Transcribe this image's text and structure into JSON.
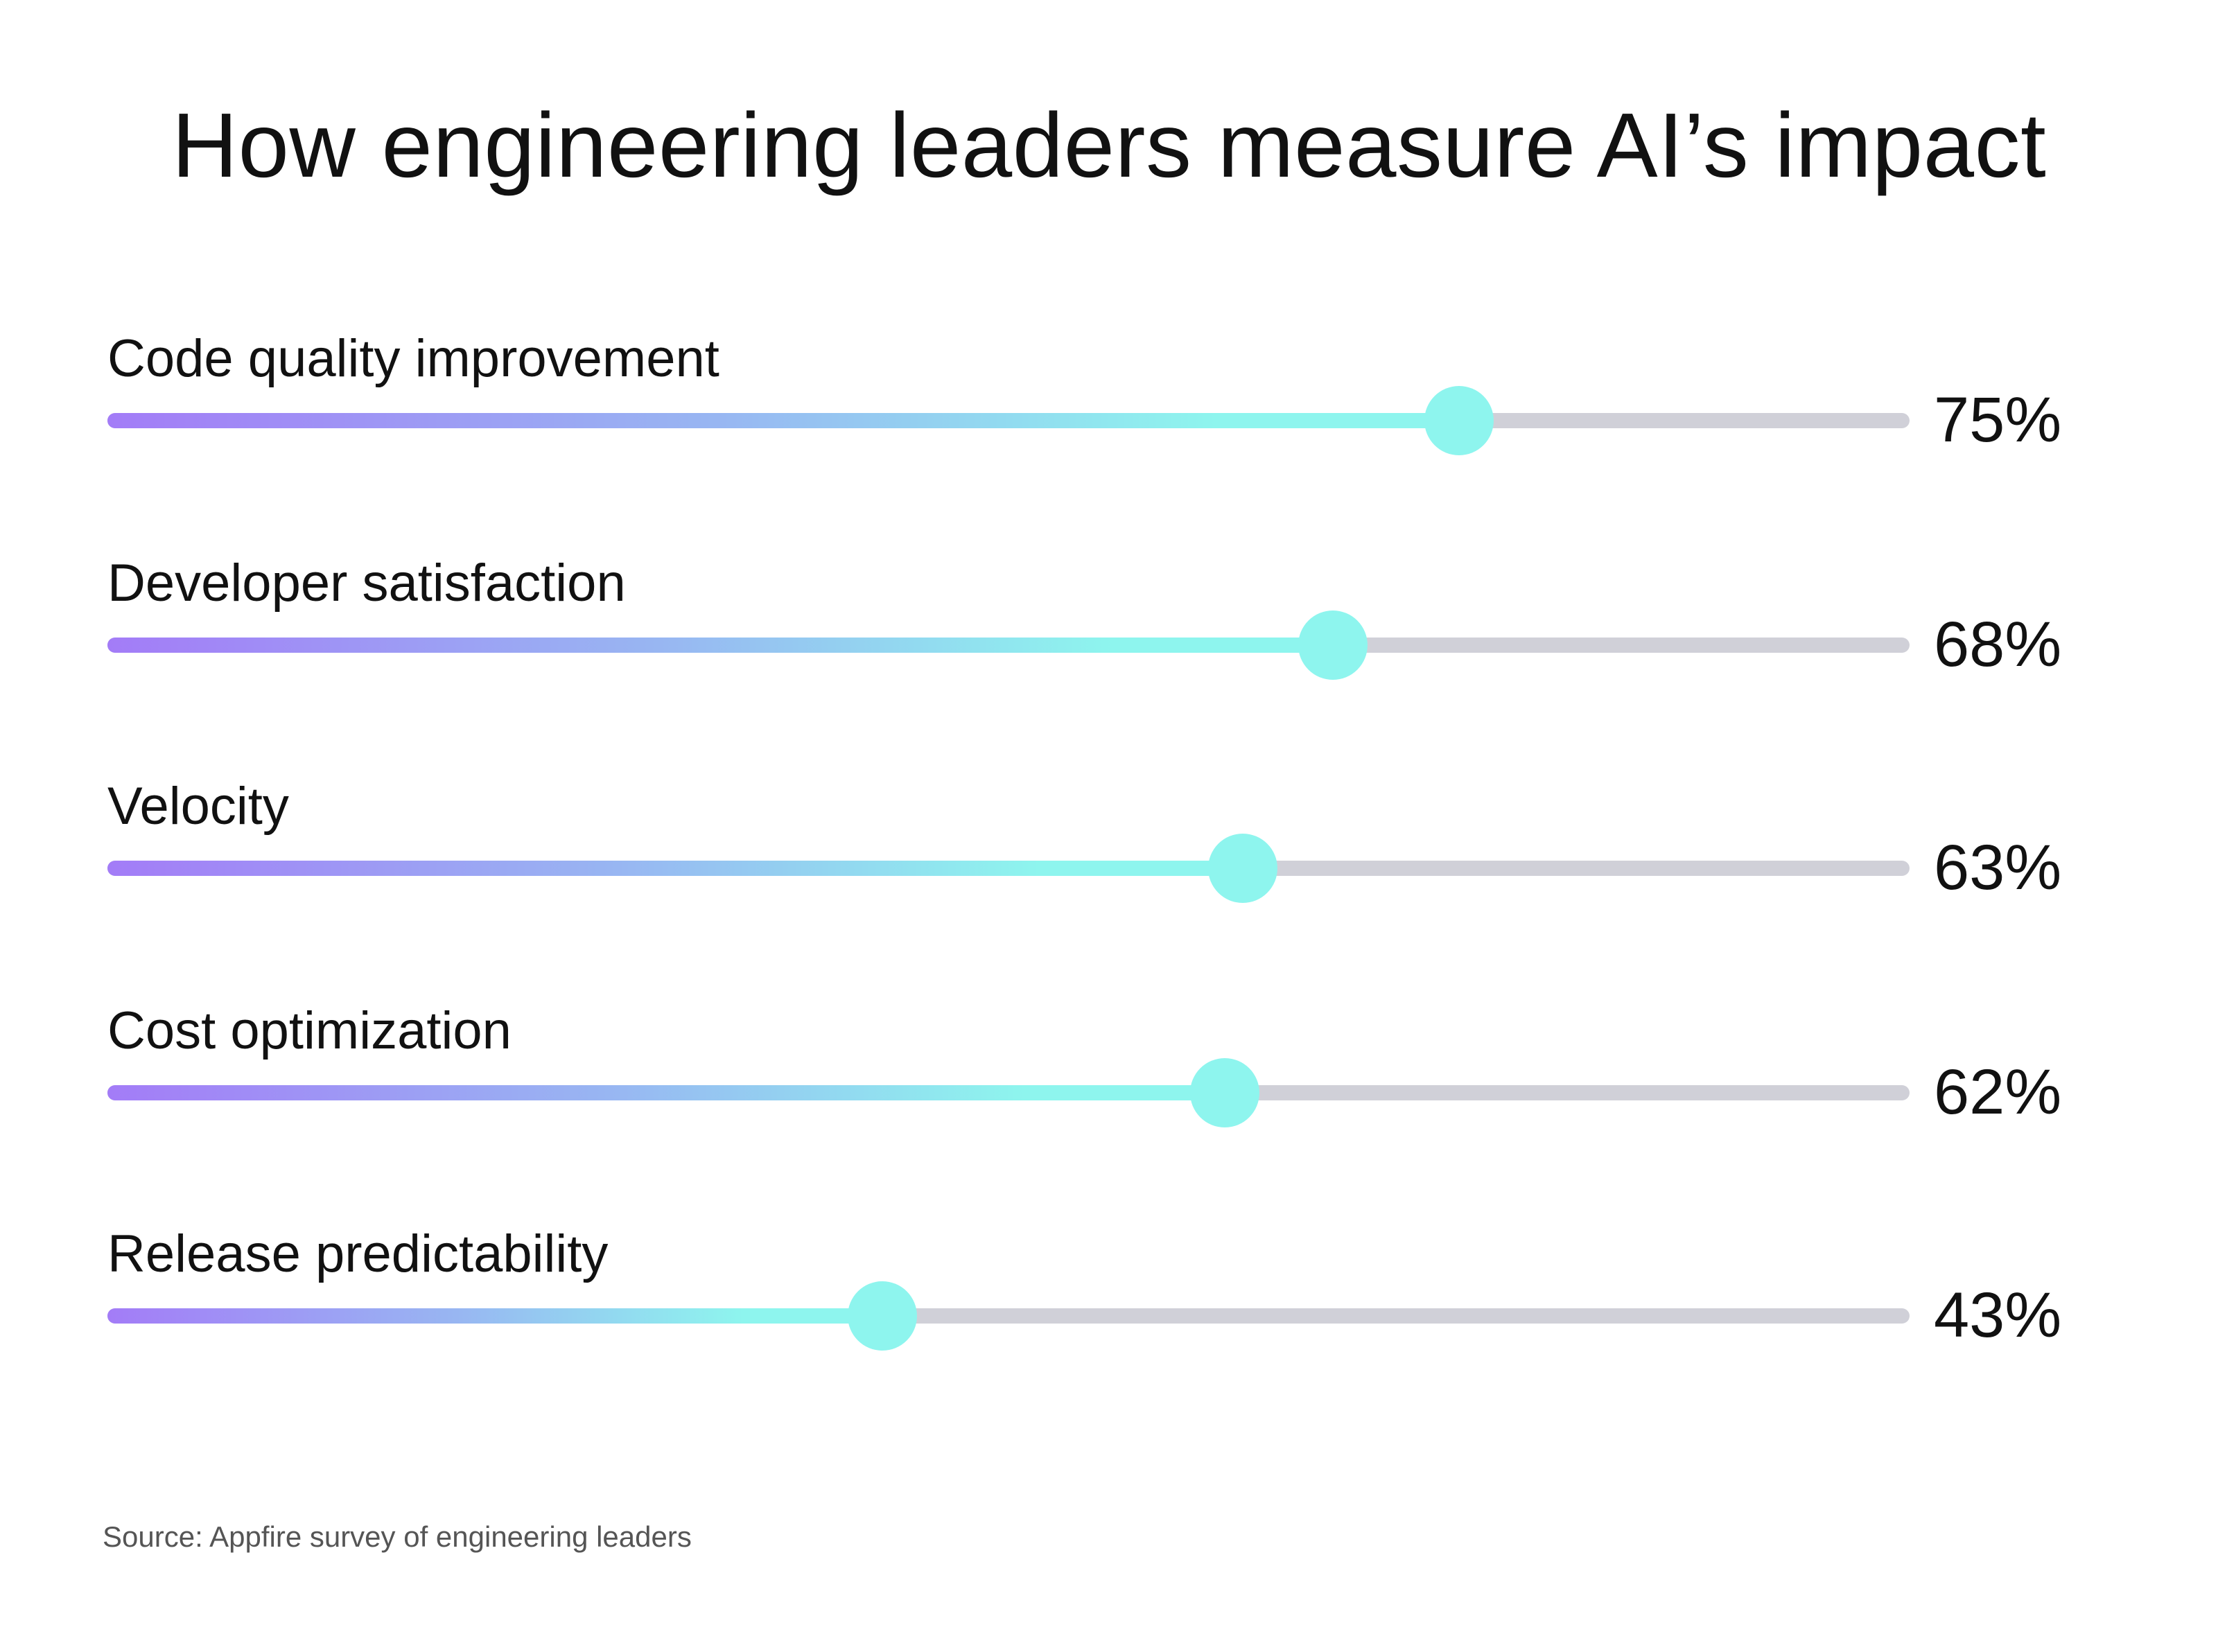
{
  "chart_data": {
    "type": "bar",
    "orientation": "horizontal",
    "title": "How engineering leaders measure AI’s impact",
    "categories": [
      "Code quality improvement",
      "Developer satisfaction",
      "Velocity",
      "Cost optimization",
      "Release predictability"
    ],
    "values": [
      75,
      68,
      63,
      62,
      43
    ],
    "value_labels": [
      "75%",
      "68%",
      "63%",
      "62%",
      "43%"
    ],
    "xlim": [
      0,
      100
    ],
    "grid": false,
    "legend": "none",
    "source": "Source: Appfire survey of engineering leaders",
    "colors": {
      "gradient_start": "#a37cf7",
      "gradient_mid": "#98b6f2",
      "gradient_end": "#8ef5ee",
      "knob": "#8ef5ee",
      "track": "#d0d0d8",
      "text": "#111111",
      "source_text": "#555555"
    }
  }
}
